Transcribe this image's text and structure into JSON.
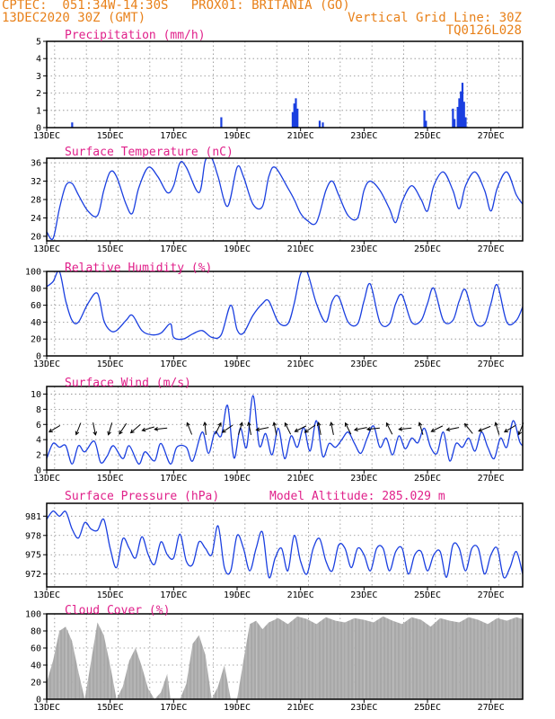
{
  "header": {
    "line1": "CPTEC:  051:34W-14:30S   PROX01: BRITANIA (GO)",
    "line2": "13DEC2020 30Z (GMT)",
    "grid_note": "Vertical Grid Line: 30Z",
    "code": "TQ0126L028"
  },
  "colors": {
    "header": "#e8811a",
    "title": "#e0208a",
    "series": "#1a3fe0",
    "cloud": "#a8a8a8"
  },
  "chart_data": [
    {
      "type": "bar",
      "title": "Precipitation (mm/h)",
      "ylim": [
        0,
        5
      ],
      "yticks": [
        "0",
        "1",
        "2",
        "3",
        "4",
        "5"
      ],
      "xticks": [
        "13DEC",
        "15DEC",
        "17DEC",
        "19DEC",
        "21DEC",
        "23DEC",
        "25DEC",
        "27DEC"
      ],
      "bars": [
        {
          "day": 13.8,
          "value": 0.3
        },
        {
          "day": 18.5,
          "value": 0.6
        },
        {
          "day": 20.75,
          "value": 0.9
        },
        {
          "day": 20.8,
          "value": 1.4
        },
        {
          "day": 20.85,
          "value": 1.7
        },
        {
          "day": 20.9,
          "value": 1.1
        },
        {
          "day": 21.6,
          "value": 0.4
        },
        {
          "day": 21.7,
          "value": 0.3
        },
        {
          "day": 24.9,
          "value": 1.0
        },
        {
          "day": 24.95,
          "value": 0.4
        },
        {
          "day": 25.8,
          "value": 1.1
        },
        {
          "day": 25.85,
          "value": 0.5
        },
        {
          "day": 25.95,
          "value": 1.2
        },
        {
          "day": 26.0,
          "value": 1.7
        },
        {
          "day": 26.05,
          "value": 2.1
        },
        {
          "day": 26.1,
          "value": 2.6
        },
        {
          "day": 26.15,
          "value": 1.5
        },
        {
          "day": 26.2,
          "value": 0.6
        }
      ]
    },
    {
      "type": "line",
      "title": "Surface Temperature (nC)",
      "ylim": [
        19,
        37
      ],
      "yticks": [
        "20",
        "24",
        "28",
        "32",
        "36"
      ],
      "xticks": [
        "13DEC",
        "15DEC",
        "17DEC",
        "19DEC",
        "21DEC",
        "23DEC",
        "25DEC",
        "27DEC"
      ],
      "x": [
        13.0,
        13.2,
        13.4,
        13.6,
        13.8,
        14.0,
        14.3,
        14.6,
        14.8,
        15.0,
        15.2,
        15.5,
        15.7,
        15.9,
        16.2,
        16.5,
        16.8,
        17.0,
        17.2,
        17.4,
        17.8,
        18.0,
        18.2,
        18.4,
        18.7,
        19.0,
        19.2,
        19.5,
        19.8,
        20.0,
        20.2,
        20.6,
        20.8,
        21.0,
        21.2,
        21.5,
        21.8,
        22.0,
        22.2,
        22.5,
        22.8,
        23.0,
        23.2,
        23.5,
        23.8,
        24.0,
        24.2,
        24.5,
        24.8,
        25.0,
        25.2,
        25.5,
        25.8,
        26.0,
        26.2,
        26.5,
        26.8,
        27.0,
        27.2,
        27.5,
        27.8,
        28.0
      ],
      "y": [
        21,
        19.5,
        26,
        31,
        31.5,
        29,
        25.5,
        24.5,
        30,
        34,
        33,
        27,
        25,
        30.5,
        35,
        33,
        29.5,
        31,
        36,
        35,
        29.5,
        36.5,
        37,
        33,
        26.5,
        35,
        33,
        27,
        26.5,
        33,
        35,
        30.5,
        28,
        25,
        23.5,
        23,
        30,
        32,
        29,
        24.5,
        24,
        30,
        32,
        30,
        26,
        23,
        27.5,
        31,
        28,
        25.5,
        31,
        34,
        30,
        26,
        31,
        34,
        30,
        25.5,
        30.5,
        34,
        29,
        27
      ]
    },
    {
      "type": "line",
      "title": "Relative Humidity (%)",
      "ylim": [
        0,
        100
      ],
      "yticks": [
        "0",
        "20",
        "40",
        "60",
        "80",
        "100"
      ],
      "xticks": [
        "13DEC",
        "15DEC",
        "17DEC",
        "19DEC",
        "21DEC",
        "23DEC",
        "25DEC",
        "27DEC"
      ],
      "x": [
        13.0,
        13.2,
        13.4,
        13.6,
        13.8,
        14.0,
        14.3,
        14.6,
        14.8,
        15.0,
        15.2,
        15.5,
        15.7,
        16.0,
        16.3,
        16.6,
        16.9,
        17.0,
        17.3,
        17.6,
        17.9,
        18.2,
        18.5,
        18.8,
        19.0,
        19.2,
        19.5,
        19.8,
        20.0,
        20.3,
        20.6,
        20.8,
        21.0,
        21.2,
        21.5,
        21.8,
        22.0,
        22.2,
        22.5,
        22.8,
        23.0,
        23.2,
        23.5,
        23.8,
        24.0,
        24.2,
        24.5,
        24.8,
        25.0,
        25.2,
        25.5,
        25.8,
        26.0,
        26.2,
        26.5,
        26.8,
        27.0,
        27.2,
        27.5,
        27.8,
        28.0
      ],
      "y": [
        82,
        88,
        100,
        65,
        42,
        40,
        62,
        74,
        42,
        30,
        30,
        42,
        48,
        30,
        25,
        27,
        38,
        22,
        20,
        26,
        30,
        22,
        25,
        60,
        31,
        27,
        48,
        62,
        65,
        40,
        38,
        62,
        97,
        100,
        62,
        40,
        65,
        70,
        40,
        38,
        65,
        85,
        40,
        38,
        62,
        72,
        40,
        42,
        62,
        80,
        42,
        42,
        65,
        78,
        40,
        38,
        62,
        84,
        40,
        42,
        58
      ]
    },
    {
      "type": "line",
      "title": "Surface Wind (m/s)",
      "ylim": [
        0,
        11
      ],
      "yticks": [
        "0",
        "2",
        "4",
        "6",
        "8",
        "10"
      ],
      "xticks": [
        "13DEC",
        "15DEC",
        "17DEC",
        "19DEC",
        "21DEC",
        "23DEC",
        "25DEC",
        "27DEC"
      ],
      "x": [
        13.0,
        13.2,
        13.4,
        13.6,
        13.8,
        14.0,
        14.2,
        14.5,
        14.7,
        14.9,
        15.1,
        15.4,
        15.6,
        15.9,
        16.1,
        16.4,
        16.6,
        16.9,
        17.1,
        17.4,
        17.6,
        17.9,
        18.1,
        18.3,
        18.5,
        18.7,
        18.9,
        19.1,
        19.3,
        19.5,
        19.7,
        19.9,
        20.1,
        20.3,
        20.5,
        20.7,
        20.9,
        21.1,
        21.3,
        21.5,
        21.7,
        21.9,
        22.1,
        22.3,
        22.5,
        22.7,
        22.9,
        23.1,
        23.3,
        23.5,
        23.7,
        23.9,
        24.1,
        24.3,
        24.5,
        24.7,
        24.9,
        25.1,
        25.3,
        25.5,
        25.7,
        25.9,
        26.1,
        26.3,
        26.5,
        26.7,
        26.9,
        27.1,
        27.3,
        27.5,
        27.7,
        27.9,
        28.0
      ],
      "y": [
        1.5,
        3.5,
        3,
        3.2,
        0.8,
        3.2,
        2.4,
        3.8,
        1,
        1.8,
        3.2,
        1.5,
        3.2,
        0.8,
        2.4,
        1.2,
        3.5,
        0.8,
        3,
        3,
        1.2,
        5,
        2.2,
        5,
        4.5,
        8.5,
        1.6,
        5.5,
        3,
        9.8,
        3.2,
        4.8,
        2,
        5.5,
        1.5,
        4.5,
        3,
        5.6,
        2.5,
        6.5,
        1.8,
        3.5,
        3,
        4,
        5,
        3.5,
        2.2,
        4.2,
        5.8,
        3,
        4.2,
        2,
        4.5,
        2.8,
        4.2,
        3.6,
        5.5,
        3,
        2.2,
        5,
        1.2,
        3.5,
        3,
        4.2,
        2.5,
        5,
        3,
        1.5,
        4.2,
        3,
        6.5,
        3.8,
        3.2
      ],
      "arrows": [
        {
          "day": 13.25,
          "u": 1,
          "v": 0.6
        },
        {
          "day": 14.0,
          "u": 0.4,
          "v": 1
        },
        {
          "day": 14.5,
          "u": -0.2,
          "v": 1
        },
        {
          "day": 15.0,
          "u": 0.3,
          "v": 1
        },
        {
          "day": 15.4,
          "u": 0.6,
          "v": 0.9
        },
        {
          "day": 15.8,
          "u": 0.8,
          "v": 0.7
        },
        {
          "day": 16.2,
          "u": 1,
          "v": 0.3
        },
        {
          "day": 16.6,
          "u": 1,
          "v": 0.1
        },
        {
          "day": 17.5,
          "u": 0.4,
          "v": -1
        },
        {
          "day": 18.0,
          "u": 0.1,
          "v": -1
        },
        {
          "day": 18.4,
          "u": -0.5,
          "v": -1
        },
        {
          "day": 18.7,
          "u": 1,
          "v": 0.7
        },
        {
          "day": 19.1,
          "u": -0.3,
          "v": -1
        },
        {
          "day": 19.4,
          "u": 0.2,
          "v": -1
        },
        {
          "day": 19.8,
          "u": 1,
          "v": 0.2
        },
        {
          "day": 20.2,
          "u": 0.2,
          "v": -1
        },
        {
          "day": 20.6,
          "u": 0.5,
          "v": -1
        },
        {
          "day": 21.0,
          "u": 1,
          "v": 0.5
        },
        {
          "day": 21.3,
          "u": 1,
          "v": 0.7
        },
        {
          "day": 21.6,
          "u": 0.2,
          "v": -1
        },
        {
          "day": 22.0,
          "u": 0.2,
          "v": -1
        },
        {
          "day": 22.5,
          "u": 0.5,
          "v": -1
        },
        {
          "day": 22.9,
          "u": 1,
          "v": 0.2
        },
        {
          "day": 23.3,
          "u": 1,
          "v": 0.1
        },
        {
          "day": 23.8,
          "u": 0.5,
          "v": -1
        },
        {
          "day": 24.3,
          "u": 1,
          "v": 0.1
        },
        {
          "day": 24.8,
          "u": 0.3,
          "v": -1
        },
        {
          "day": 25.3,
          "u": 1,
          "v": 0.5
        },
        {
          "day": 25.8,
          "u": 1,
          "v": 0.2
        },
        {
          "day": 26.3,
          "u": 0.8,
          "v": -1
        },
        {
          "day": 26.8,
          "u": 1,
          "v": 0.4
        },
        {
          "day": 27.2,
          "u": 0.3,
          "v": -1
        },
        {
          "day": 27.6,
          "u": 1,
          "v": 0.6
        },
        {
          "day": 27.95,
          "u": 0.4,
          "v": 1
        }
      ]
    },
    {
      "type": "line",
      "title": "Surface Pressure (hPa)",
      "annotation": "Model Altitude: 285.029 m",
      "ylim": [
        970,
        983
      ],
      "yticks": [
        "972",
        "975",
        "978",
        "981"
      ],
      "xticks": [
        "13DEC",
        "15DEC",
        "17DEC",
        "19DEC",
        "21DEC",
        "23DEC",
        "25DEC",
        "27DEC"
      ],
      "x": [
        13.0,
        13.2,
        13.4,
        13.6,
        13.8,
        14.0,
        14.2,
        14.4,
        14.6,
        14.8,
        15.0,
        15.2,
        15.4,
        15.6,
        15.8,
        16.0,
        16.2,
        16.4,
        16.6,
        16.8,
        17.0,
        17.2,
        17.4,
        17.6,
        17.8,
        18.0,
        18.2,
        18.4,
        18.6,
        18.8,
        19.0,
        19.2,
        19.4,
        19.6,
        19.8,
        20.0,
        20.2,
        20.4,
        20.6,
        20.8,
        21.0,
        21.2,
        21.4,
        21.6,
        21.8,
        22.0,
        22.2,
        22.4,
        22.6,
        22.8,
        23.0,
        23.2,
        23.4,
        23.6,
        23.8,
        24.0,
        24.2,
        24.4,
        24.6,
        24.8,
        25.0,
        25.2,
        25.4,
        25.6,
        25.8,
        26.0,
        26.2,
        26.4,
        26.6,
        26.8,
        27.0,
        27.2,
        27.4,
        27.6,
        27.8,
        28.0
      ],
      "y": [
        980.5,
        981.8,
        981,
        981.7,
        979,
        977.6,
        980,
        979,
        978.8,
        980.5,
        976,
        973,
        977.5,
        976,
        974.5,
        977.8,
        975,
        973.5,
        977,
        975,
        974.5,
        978.2,
        974,
        973.5,
        977,
        976,
        975,
        979.5,
        973,
        972.5,
        978,
        976,
        972.5,
        976,
        978.5,
        971.5,
        974.5,
        976,
        972.5,
        978,
        974,
        972,
        976,
        977.5,
        974,
        972.5,
        976.5,
        976,
        973,
        976,
        975,
        972.5,
        976,
        976,
        972.5,
        975.5,
        976,
        972,
        975,
        975.5,
        972.5,
        975,
        975.5,
        971.5,
        976.5,
        976,
        972.5,
        976,
        976,
        972,
        975,
        976,
        971.5,
        973,
        975.5,
        972
      ]
    },
    {
      "type": "bar",
      "title": "Cloud Cover (%)",
      "ylim": [
        0,
        100
      ],
      "yticks": [
        "0",
        "20",
        "40",
        "60",
        "80",
        "100"
      ],
      "xticks": [
        "13DEC",
        "15DEC",
        "17DEC",
        "19DEC",
        "21DEC",
        "23DEC",
        "25DEC",
        "27DEC"
      ],
      "segments": [
        [
          13.0,
          20
        ],
        [
          13.2,
          45
        ],
        [
          13.4,
          80
        ],
        [
          13.6,
          85
        ],
        [
          13.8,
          68
        ],
        [
          14.0,
          32
        ],
        [
          14.2,
          0
        ],
        [
          14.4,
          45
        ],
        [
          14.6,
          90
        ],
        [
          14.8,
          75
        ],
        [
          15.0,
          40
        ],
        [
          15.2,
          0
        ],
        [
          15.4,
          15
        ],
        [
          15.6,
          45
        ],
        [
          15.8,
          60
        ],
        [
          16.0,
          38
        ],
        [
          16.2,
          12
        ],
        [
          16.4,
          0
        ],
        [
          16.6,
          8
        ],
        [
          16.8,
          30
        ],
        [
          16.9,
          0
        ],
        [
          17.2,
          0
        ],
        [
          17.4,
          18
        ],
        [
          17.6,
          65
        ],
        [
          17.8,
          75
        ],
        [
          18.0,
          52
        ],
        [
          18.2,
          0
        ],
        [
          18.4,
          15
        ],
        [
          18.6,
          40
        ],
        [
          18.8,
          0
        ],
        [
          19.0,
          0
        ],
        [
          19.2,
          45
        ],
        [
          19.4,
          88
        ],
        [
          19.6,
          92
        ],
        [
          19.8,
          82
        ],
        [
          20.0,
          90
        ],
        [
          20.3,
          95
        ],
        [
          20.6,
          88
        ],
        [
          20.9,
          97
        ],
        [
          21.2,
          94
        ],
        [
          21.5,
          88
        ],
        [
          21.8,
          96
        ],
        [
          22.1,
          92
        ],
        [
          22.4,
          90
        ],
        [
          22.7,
          95
        ],
        [
          23.0,
          93
        ],
        [
          23.3,
          90
        ],
        [
          23.6,
          97
        ],
        [
          23.9,
          92
        ],
        [
          24.2,
          88
        ],
        [
          24.5,
          96
        ],
        [
          24.8,
          93
        ],
        [
          25.1,
          85
        ],
        [
          25.4,
          95
        ],
        [
          25.7,
          92
        ],
        [
          26.0,
          90
        ],
        [
          26.3,
          96
        ],
        [
          26.6,
          93
        ],
        [
          26.9,
          88
        ],
        [
          27.2,
          95
        ],
        [
          27.5,
          92
        ],
        [
          27.8,
          96
        ],
        [
          28.0,
          94
        ]
      ]
    }
  ]
}
